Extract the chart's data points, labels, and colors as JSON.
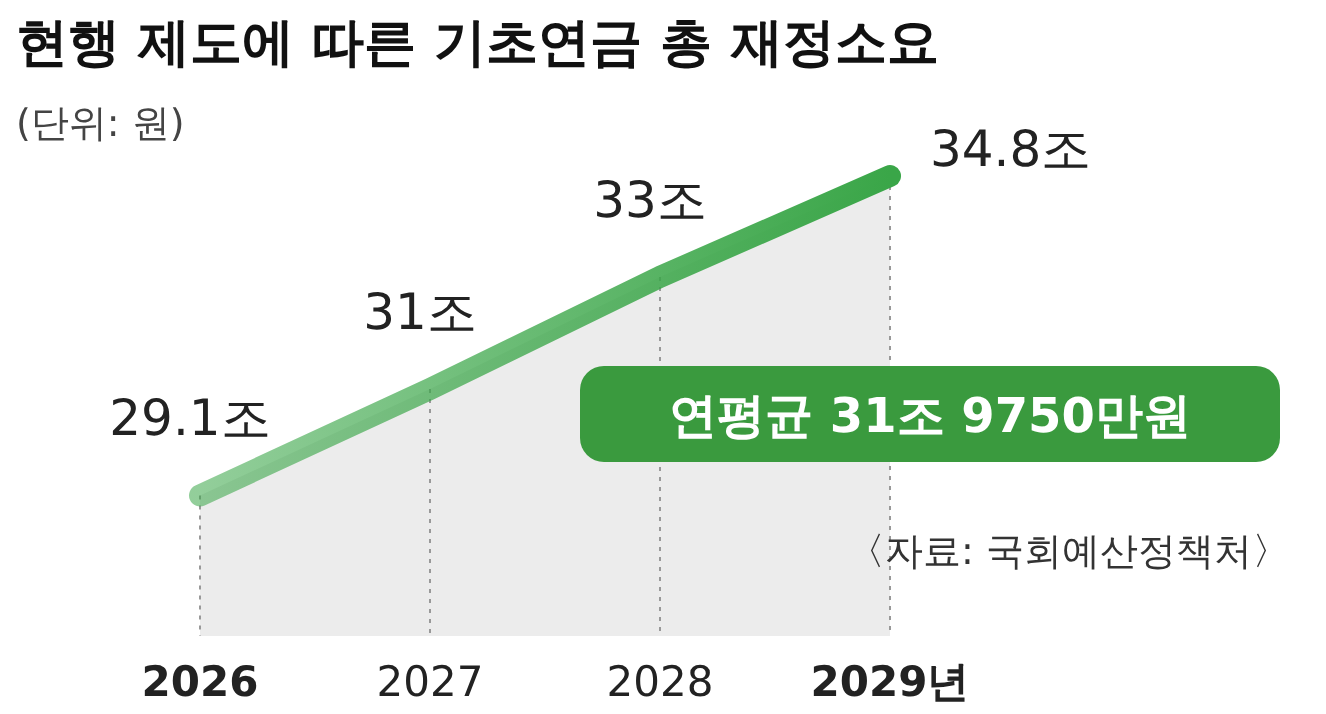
{
  "chart_data": {
    "type": "area",
    "title": "현행 제도에 따른 기초연금 총 재정소요",
    "subtitle": "(단위: 원)",
    "categories": [
      "2026",
      "2027",
      "2028",
      "2029년"
    ],
    "series": [
      {
        "color": "#3aa648",
        "values": [
          29.1,
          31,
          33,
          34.8
        ],
        "value_labels": [
          "29.1조",
          "31조",
          "33조",
          "34.8조"
        ]
      }
    ],
    "annotations": [
      "연평균 31조 9750만원",
      "〈자료: 국회예산정책처〉"
    ],
    "tick_labels": "x"
  }
}
